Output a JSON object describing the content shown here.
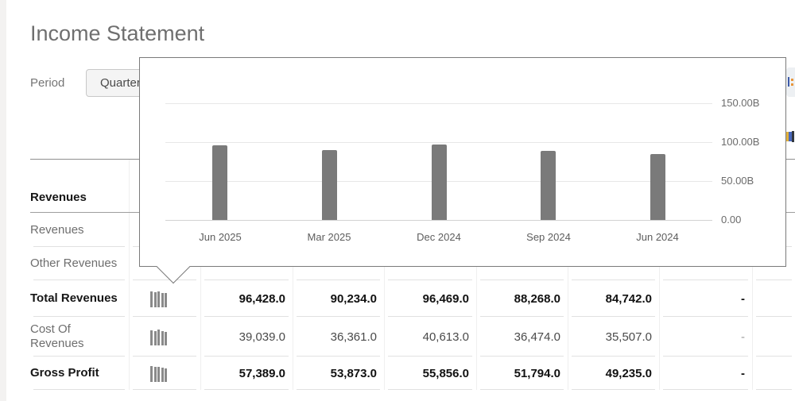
{
  "page": {
    "title": "Income Statement"
  },
  "period_control": {
    "label": "Period",
    "selected_option": "Quarterly"
  },
  "chart_data": {
    "type": "bar",
    "title": "",
    "xlabel": "",
    "ylabel": "",
    "categories": [
      "Jun 2025",
      "Mar 2025",
      "Dec 2024",
      "Sep 2024",
      "Jun 2024"
    ],
    "values": [
      96.428,
      90.234,
      96.469,
      88.268,
      84.742
    ],
    "unit": "billions",
    "ylim": [
      0,
      150
    ],
    "y_ticks": [
      {
        "label": "150.00B",
        "value": 150
      },
      {
        "label": "100.00B",
        "value": 100
      },
      {
        "label": "50.00B",
        "value": 50
      },
      {
        "label": "0.00",
        "value": 0
      }
    ],
    "grid": true,
    "legend": "none",
    "bar_color": "#7a7a7a"
  },
  "table": {
    "rows": [
      {
        "label": "Revenues",
        "style": "section",
        "sparkline": false,
        "values": []
      },
      {
        "label": "Revenues",
        "style": "normal",
        "sparkline": false,
        "values": [
          "",
          "",
          "",
          "",
          "",
          ""
        ]
      },
      {
        "label": "Other Revenues",
        "style": "normal",
        "sparkline": false,
        "values": [
          "",
          "",
          "",
          "",
          "",
          ""
        ]
      },
      {
        "label": "Total Revenues",
        "style": "bold",
        "sparkline": true,
        "values": [
          "96,428.0",
          "90,234.0",
          "96,469.0",
          "88,268.0",
          "84,742.0",
          "-"
        ]
      },
      {
        "label": "Cost Of Revenues",
        "style": "normal",
        "sparkline": true,
        "values": [
          "39,039.0",
          "36,361.0",
          "40,613.0",
          "36,474.0",
          "35,507.0",
          "-"
        ]
      },
      {
        "label": "Gross Profit",
        "style": "bold",
        "sparkline": true,
        "values": [
          "57,389.0",
          "53,873.0",
          "55,856.0",
          "51,794.0",
          "49,235.0",
          "-"
        ]
      }
    ]
  },
  "clipped_right_edge": {
    "top_button_fragment_text": "d S"
  },
  "colors": {
    "title_gray": "#6f6f6f",
    "bar_gray": "#7a7a7a",
    "popup_border": "#7a7a7a",
    "row_border": "#e1e1e1",
    "header_border": "#9e9e9e"
  }
}
